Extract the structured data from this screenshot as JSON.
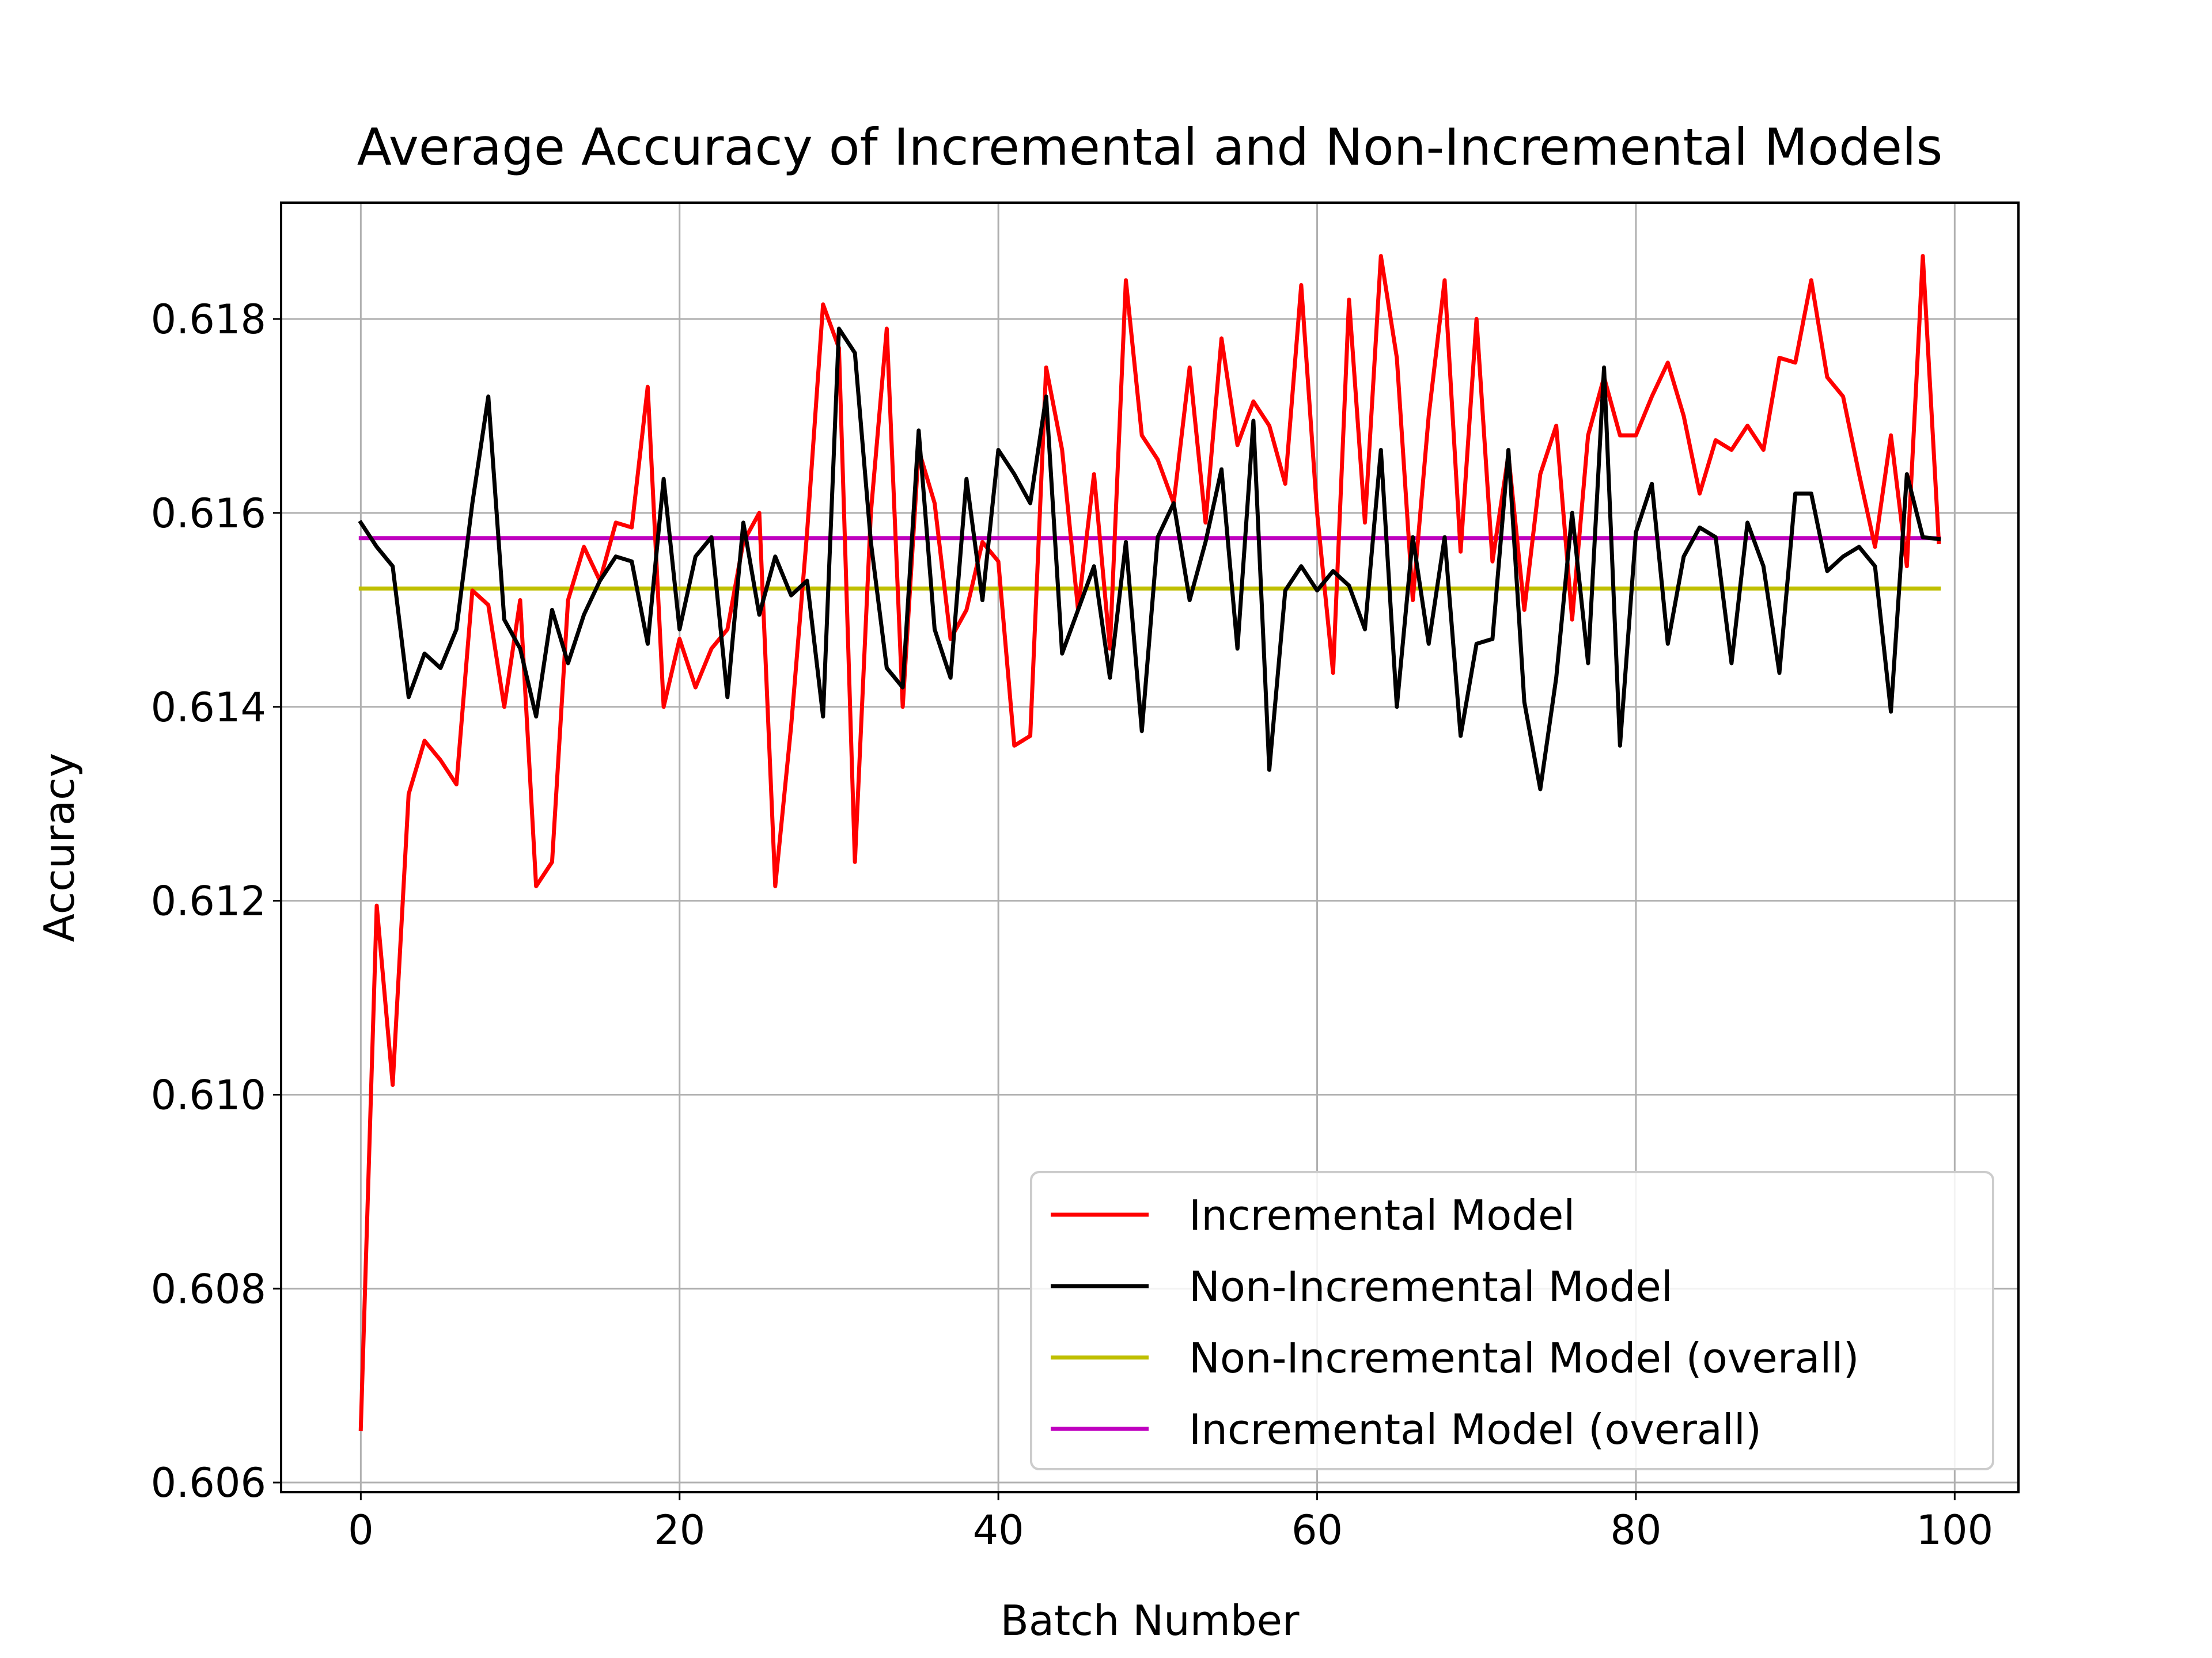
{
  "chart_data": {
    "type": "line",
    "title": "Average Accuracy of Incremental and Non-Incremental Models",
    "xlabel": "Batch Number",
    "ylabel": "Accuracy",
    "xlim": [
      -5,
      104
    ],
    "ylim": [
      0.6059,
      0.6192
    ],
    "grid": true,
    "legend_position": "lower-right",
    "xticks": [
      0,
      20,
      40,
      60,
      80,
      100
    ],
    "yticks": [
      0.606,
      0.608,
      0.61,
      0.612,
      0.614,
      0.616,
      0.618
    ],
    "xtick_labels": [
      "0",
      "20",
      "40",
      "60",
      "80",
      "100"
    ],
    "ytick_labels": [
      "0.606",
      "0.608",
      "0.610",
      "0.612",
      "0.614",
      "0.616",
      "0.618"
    ],
    "series": [
      {
        "name": "Incremental Model",
        "color": "#ff0000",
        "values": [
          0.60655,
          0.61195,
          0.6101,
          0.6131,
          0.61365,
          0.61345,
          0.6132,
          0.6152,
          0.61505,
          0.614,
          0.6151,
          0.61215,
          0.6124,
          0.6151,
          0.61565,
          0.6153,
          0.6159,
          0.61585,
          0.6173,
          0.614,
          0.6147,
          0.6142,
          0.6146,
          0.6148,
          0.6157,
          0.616,
          0.61215,
          0.6138,
          0.6158,
          0.61815,
          0.6177,
          0.6124,
          0.616,
          0.6179,
          0.614,
          0.61665,
          0.6161,
          0.6147,
          0.615,
          0.6157,
          0.6155,
          0.6136,
          0.6137,
          0.6175,
          0.61665,
          0.615,
          0.6164,
          0.6146,
          0.6184,
          0.6168,
          0.61655,
          0.6161,
          0.6175,
          0.6159,
          0.6178,
          0.6167,
          0.61715,
          0.6169,
          0.6163,
          0.61835,
          0.616,
          0.61435,
          0.6182,
          0.6159,
          0.61865,
          0.6176,
          0.6151,
          0.617,
          0.6184,
          0.6156,
          0.618,
          0.6155,
          0.6166,
          0.615,
          0.6164,
          0.6169,
          0.6149,
          0.6168,
          0.6174,
          0.6168,
          0.6168,
          0.6172,
          0.61755,
          0.617,
          0.6162,
          0.61675,
          0.61665,
          0.6169,
          0.61665,
          0.6176,
          0.61755,
          0.6184,
          0.6174,
          0.6172,
          0.6164,
          0.61565,
          0.6168,
          0.61545,
          0.61865,
          0.6157
        ]
      },
      {
        "name": "Non-Incremental Model",
        "color": "#000000",
        "values": [
          0.6159,
          0.61565,
          0.61545,
          0.6141,
          0.61455,
          0.6144,
          0.6148,
          0.6161,
          0.6172,
          0.6149,
          0.6146,
          0.6139,
          0.615,
          0.61445,
          0.61495,
          0.6153,
          0.61555,
          0.6155,
          0.61465,
          0.61635,
          0.6148,
          0.61555,
          0.61575,
          0.6141,
          0.6159,
          0.61495,
          0.61555,
          0.61515,
          0.6153,
          0.6139,
          0.6179,
          0.61765,
          0.6157,
          0.6144,
          0.6142,
          0.61685,
          0.6148,
          0.6143,
          0.61635,
          0.6151,
          0.61665,
          0.6164,
          0.6161,
          0.6172,
          0.61455,
          0.615,
          0.61545,
          0.6143,
          0.6157,
          0.61375,
          0.61575,
          0.6161,
          0.6151,
          0.6157,
          0.61645,
          0.6146,
          0.61695,
          0.61335,
          0.6152,
          0.61545,
          0.6152,
          0.6154,
          0.61525,
          0.6148,
          0.61665,
          0.614,
          0.61575,
          0.61465,
          0.61575,
          0.6137,
          0.61465,
          0.6147,
          0.61665,
          0.61405,
          0.61315,
          0.6143,
          0.616,
          0.61445,
          0.6175,
          0.6136,
          0.6158,
          0.6163,
          0.61465,
          0.61555,
          0.61585,
          0.61575,
          0.61445,
          0.6159,
          0.61545,
          0.61435,
          0.6162,
          0.6162,
          0.6154,
          0.61555,
          0.61565,
          0.61545,
          0.61395,
          0.6164,
          0.61575,
          0.61573
        ]
      },
      {
        "name": "Non-Incremental Model (overall)",
        "color": "#bfbf00",
        "x": [
          0,
          99
        ],
        "values": [
          0.61522,
          0.61522
        ]
      },
      {
        "name": "Incremental Model (overall)",
        "color": "#bf00bf",
        "x": [
          0,
          99
        ],
        "values": [
          0.61574,
          0.61574
        ]
      }
    ]
  }
}
